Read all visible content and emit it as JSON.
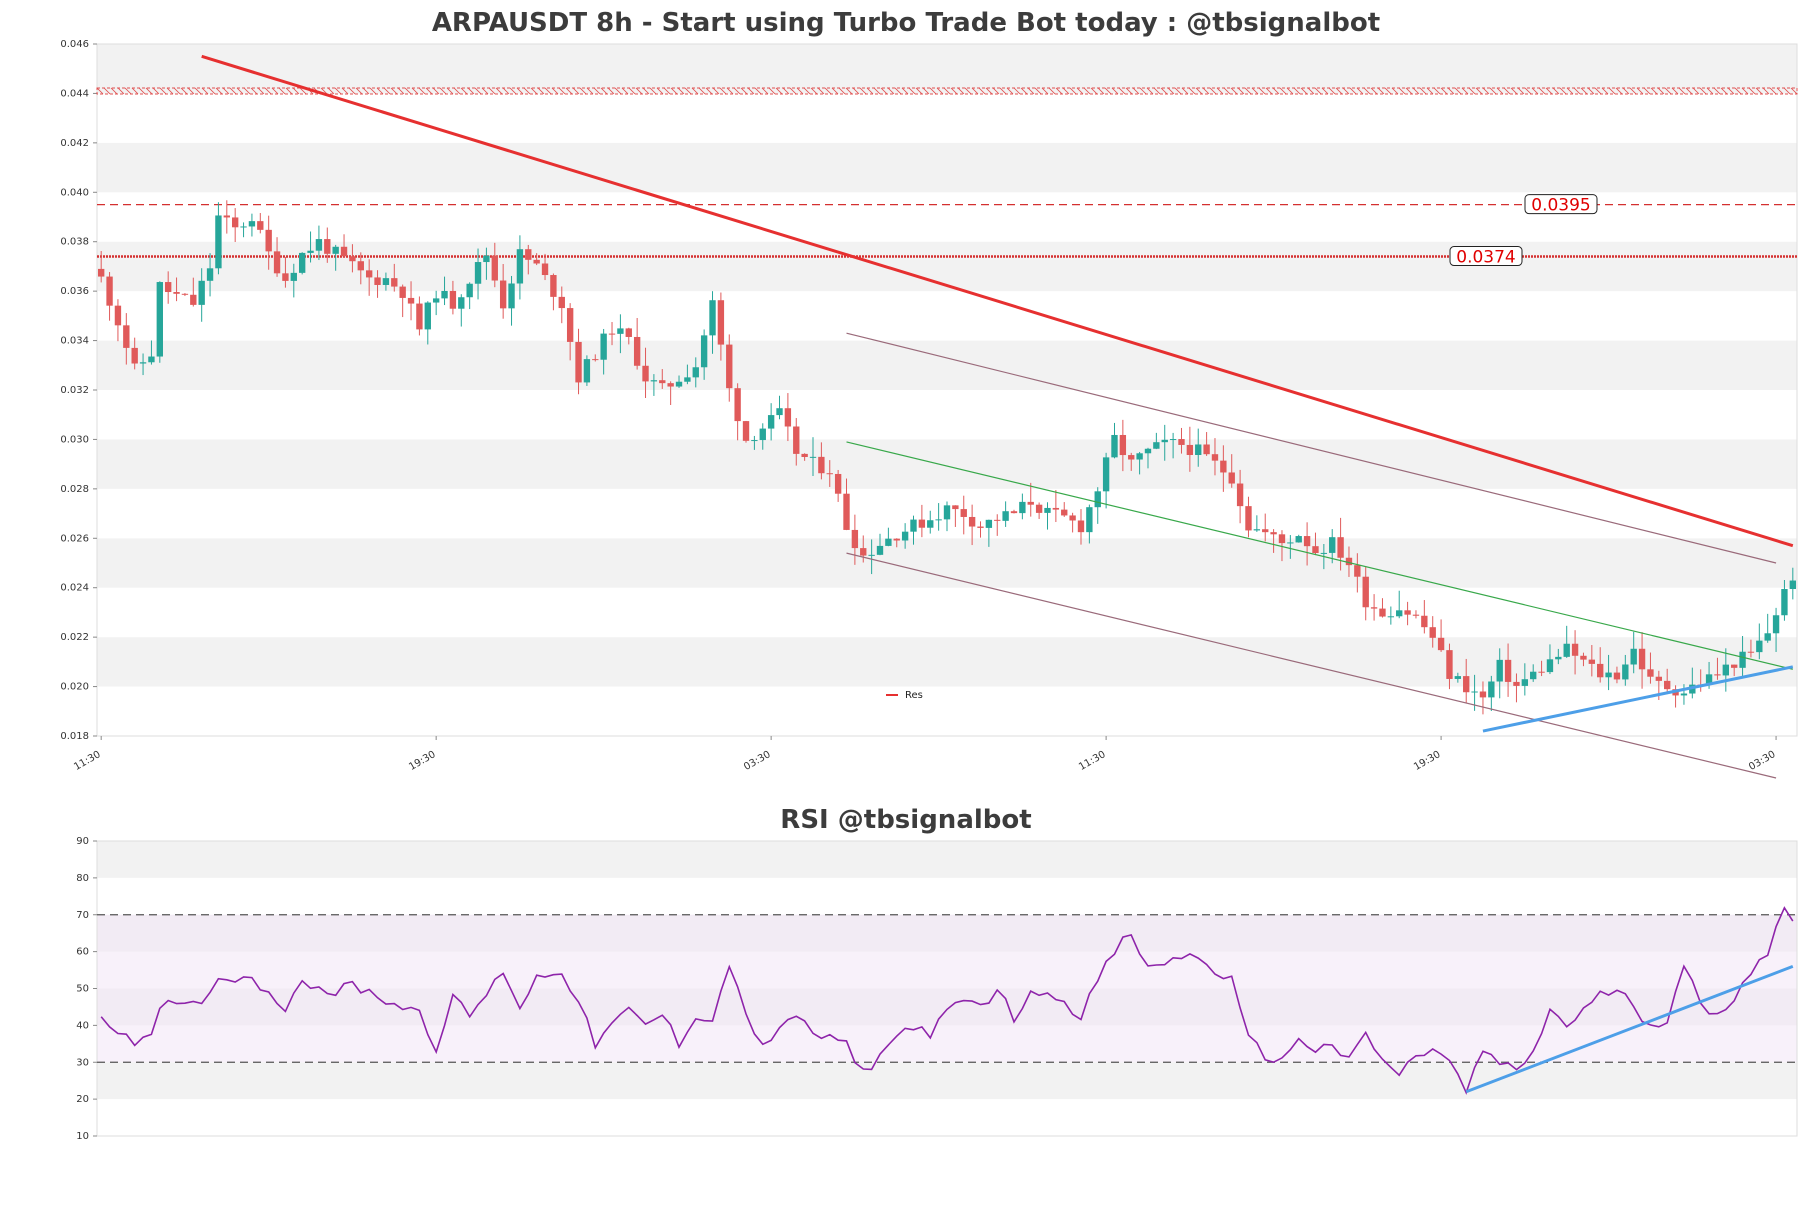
{
  "chart_data": [
    {
      "type": "candlestick",
      "title": "ARPAUSDT 8h - Start using Turbo Trade Bot today : @tbsignalbot",
      "ylim": [
        0.018,
        0.046
      ],
      "y_ticks": [
        "0.018",
        "0.020",
        "0.022",
        "0.024",
        "0.026",
        "0.028",
        "0.030",
        "0.032",
        "0.034",
        "0.036",
        "0.038",
        "0.040",
        "0.042",
        "0.044",
        "0.046"
      ],
      "x_tick_labels": [
        "11:30",
        "19:30",
        "03:30",
        "11:30",
        "19:30",
        "03:30"
      ],
      "x_tick_index": [
        0,
        40,
        80,
        120,
        160,
        200
      ],
      "bars_total": 203,
      "close_anchors": [
        [
          0,
          0.0365
        ],
        [
          2,
          0.0348
        ],
        [
          4,
          0.0328
        ],
        [
          6,
          0.0335
        ],
        [
          7,
          0.0362
        ],
        [
          9,
          0.0358
        ],
        [
          11,
          0.0355
        ],
        [
          13,
          0.037
        ],
        [
          14,
          0.039
        ],
        [
          16,
          0.0385
        ],
        [
          18,
          0.039
        ],
        [
          20,
          0.0375
        ],
        [
          22,
          0.0365
        ],
        [
          24,
          0.0375
        ],
        [
          26,
          0.038
        ],
        [
          28,
          0.0375
        ],
        [
          30,
          0.037
        ],
        [
          32,
          0.0365
        ],
        [
          34,
          0.0365
        ],
        [
          36,
          0.036
        ],
        [
          38,
          0.0345
        ],
        [
          40,
          0.036
        ],
        [
          42,
          0.0355
        ],
        [
          44,
          0.0365
        ],
        [
          46,
          0.0375
        ],
        [
          48,
          0.0355
        ],
        [
          50,
          0.0375
        ],
        [
          52,
          0.037
        ],
        [
          55,
          0.0355
        ],
        [
          57,
          0.0325
        ],
        [
          59,
          0.0335
        ],
        [
          61,
          0.0345
        ],
        [
          63,
          0.034
        ],
        [
          65,
          0.0325
        ],
        [
          67,
          0.032
        ],
        [
          69,
          0.0325
        ],
        [
          71,
          0.033
        ],
        [
          73,
          0.0355
        ],
        [
          75,
          0.032
        ],
        [
          77,
          0.03
        ],
        [
          79,
          0.0305
        ],
        [
          81,
          0.031
        ],
        [
          83,
          0.0295
        ],
        [
          85,
          0.029
        ],
        [
          87,
          0.0288
        ],
        [
          89,
          0.0265
        ],
        [
          91,
          0.0253
        ],
        [
          93,
          0.0258
        ],
        [
          95,
          0.0262
        ],
        [
          97,
          0.0265
        ],
        [
          99,
          0.0268
        ],
        [
          101,
          0.0272
        ],
        [
          103,
          0.027
        ],
        [
          105,
          0.0265
        ],
        [
          107,
          0.0268
        ],
        [
          109,
          0.027
        ],
        [
          111,
          0.0275
        ],
        [
          113,
          0.027
        ],
        [
          115,
          0.0268
        ],
        [
          117,
          0.0265
        ],
        [
          119,
          0.028
        ],
        [
          121,
          0.03
        ],
        [
          123,
          0.029
        ],
        [
          125,
          0.0295
        ],
        [
          127,
          0.0298
        ],
        [
          129,
          0.0298
        ],
        [
          131,
          0.0295
        ],
        [
          133,
          0.029
        ],
        [
          135,
          0.0285
        ],
        [
          137,
          0.0265
        ],
        [
          139,
          0.0262
        ],
        [
          141,
          0.0258
        ],
        [
          143,
          0.0262
        ],
        [
          145,
          0.0255
        ],
        [
          147,
          0.0258
        ],
        [
          149,
          0.025
        ],
        [
          151,
          0.0235
        ],
        [
          153,
          0.023
        ],
        [
          155,
          0.0232
        ],
        [
          157,
          0.0228
        ],
        [
          159,
          0.022
        ],
        [
          161,
          0.0205
        ],
        [
          163,
          0.02
        ],
        [
          165,
          0.0195
        ],
        [
          167,
          0.0208
        ],
        [
          169,
          0.02
        ],
        [
          171,
          0.0205
        ],
        [
          173,
          0.021
        ],
        [
          175,
          0.0215
        ],
        [
          177,
          0.021
        ],
        [
          179,
          0.0205
        ],
        [
          181,
          0.0205
        ],
        [
          183,
          0.0215
        ],
        [
          185,
          0.0202
        ],
        [
          187,
          0.02
        ],
        [
          189,
          0.0198
        ],
        [
          191,
          0.0202
        ],
        [
          193,
          0.0205
        ],
        [
          195,
          0.021
        ],
        [
          197,
          0.0213
        ],
        [
          199,
          0.0222
        ],
        [
          201,
          0.0238
        ],
        [
          202,
          0.0245
        ]
      ],
      "levels": [
        {
          "value": 0.0441,
          "style": "red-hatched"
        },
        {
          "value": 0.0395,
          "style": "red-dashed",
          "label": "0.0395"
        },
        {
          "value": 0.0374,
          "style": "red-dotted",
          "label": "0.0374"
        }
      ],
      "trendlines": [
        {
          "name": "Res",
          "from": [
            12,
            0.0455
          ],
          "to": [
            202,
            0.0257
          ],
          "color": "#e63030"
        },
        {
          "from": [
            89,
            0.0343
          ],
          "to": [
            200,
            0.025
          ],
          "color": "#9a6a7a"
        },
        {
          "from": [
            89,
            0.0254
          ],
          "to": [
            200,
            0.0163
          ],
          "color": "#9a6a7a"
        },
        {
          "from": [
            89,
            0.0299
          ],
          "to": [
            202,
            0.0207
          ],
          "color": "#38a84a"
        },
        {
          "from": [
            165,
            0.0182
          ],
          "to": [
            202,
            0.0208
          ],
          "color": "#4d9fe8"
        }
      ],
      "legend": [
        {
          "label": "Res",
          "color": "#e63030"
        }
      ],
      "colors": {
        "up": "#26a69a",
        "down": "#e05a5a"
      }
    },
    {
      "type": "line",
      "title": "RSI @tbsignalbot",
      "ylim": [
        10,
        90
      ],
      "y_ticks": [
        "10",
        "20",
        "30",
        "40",
        "50",
        "60",
        "70",
        "80",
        "90"
      ],
      "bands": [
        30,
        70
      ],
      "series_anchors": [
        [
          0,
          41
        ],
        [
          2,
          39
        ],
        [
          4,
          36
        ],
        [
          6,
          38
        ],
        [
          7,
          46
        ],
        [
          9,
          45
        ],
        [
          11,
          45
        ],
        [
          13,
          48
        ],
        [
          14,
          54
        ],
        [
          16,
          52
        ],
        [
          18,
          54
        ],
        [
          20,
          48
        ],
        [
          22,
          45
        ],
        [
          24,
          53
        ],
        [
          26,
          50
        ],
        [
          28,
          49
        ],
        [
          30,
          51
        ],
        [
          32,
          49
        ],
        [
          34,
          47
        ],
        [
          36,
          45
        ],
        [
          38,
          44
        ],
        [
          40,
          34
        ],
        [
          42,
          47
        ],
        [
          44,
          43
        ],
        [
          46,
          48
        ],
        [
          48,
          55
        ],
        [
          50,
          45
        ],
        [
          52,
          53
        ],
        [
          55,
          55
        ],
        [
          57,
          46
        ],
        [
          59,
          35
        ],
        [
          61,
          40
        ],
        [
          63,
          44
        ],
        [
          65,
          40
        ],
        [
          67,
          43
        ],
        [
          69,
          35
        ],
        [
          71,
          43
        ],
        [
          73,
          41
        ],
        [
          75,
          57
        ],
        [
          77,
          42
        ],
        [
          79,
          35
        ],
        [
          81,
          38
        ],
        [
          83,
          43
        ],
        [
          85,
          38
        ],
        [
          87,
          36
        ],
        [
          89,
          35
        ],
        [
          91,
          27
        ],
        [
          93,
          32
        ],
        [
          95,
          37
        ],
        [
          97,
          40
        ],
        [
          99,
          38
        ],
        [
          101,
          43
        ],
        [
          103,
          47
        ],
        [
          105,
          45
        ],
        [
          107,
          50
        ],
        [
          109,
          42
        ],
        [
          111,
          48
        ],
        [
          113,
          50
        ],
        [
          115,
          46
        ],
        [
          117,
          43
        ],
        [
          119,
          52
        ],
        [
          121,
          60
        ],
        [
          123,
          65
        ],
        [
          125,
          55
        ],
        [
          127,
          57
        ],
        [
          129,
          59
        ],
        [
          131,
          58
        ],
        [
          133,
          55
        ],
        [
          135,
          52
        ],
        [
          137,
          36
        ],
        [
          139,
          32
        ],
        [
          141,
          30
        ],
        [
          143,
          37
        ],
        [
          145,
          33
        ],
        [
          147,
          35
        ],
        [
          149,
          30
        ],
        [
          151,
          38
        ],
        [
          153,
          30
        ],
        [
          155,
          27
        ],
        [
          157,
          31
        ],
        [
          159,
          34
        ],
        [
          161,
          30
        ],
        [
          163,
          22
        ],
        [
          165,
          33
        ],
        [
          167,
          30
        ],
        [
          169,
          27
        ],
        [
          171,
          33
        ],
        [
          173,
          44
        ],
        [
          175,
          40
        ],
        [
          177,
          44
        ],
        [
          179,
          48
        ],
        [
          181,
          50
        ],
        [
          183,
          45
        ],
        [
          185,
          40
        ],
        [
          187,
          42
        ],
        [
          189,
          57
        ],
        [
          191,
          45
        ],
        [
          193,
          42
        ],
        [
          195,
          48
        ],
        [
          197,
          55
        ],
        [
          199,
          60
        ],
        [
          201,
          72
        ],
        [
          202,
          69
        ]
      ],
      "trendline": {
        "from": [
          163,
          22
        ],
        "to": [
          202,
          56
        ],
        "color": "#4d9fe8"
      },
      "colors": {
        "line": "#8e24aa",
        "band_fill": "#f3e5f5"
      }
    }
  ]
}
